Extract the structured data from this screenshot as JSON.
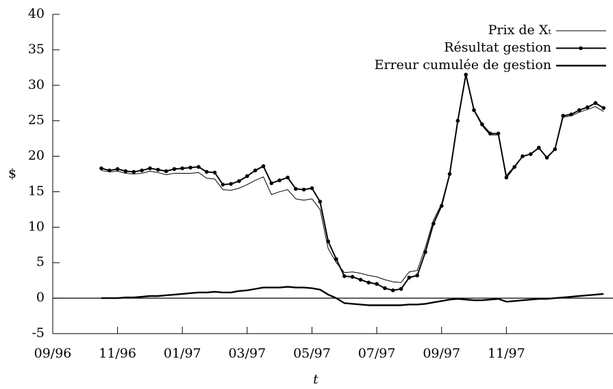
{
  "chart_data": {
    "type": "line",
    "xlabel": "t",
    "ylabel": "$",
    "xlim": [
      0,
      17.29
    ],
    "ylim": [
      -5,
      40
    ],
    "xticks": [
      {
        "value": 0,
        "label": "09/96"
      },
      {
        "value": 2,
        "label": "11/96"
      },
      {
        "value": 4,
        "label": "01/97"
      },
      {
        "value": 6,
        "label": "03/97"
      },
      {
        "value": 8,
        "label": "05/97"
      },
      {
        "value": 10,
        "label": "07/97"
      },
      {
        "value": 12,
        "label": "09/97"
      },
      {
        "value": 14,
        "label": "11/97"
      }
    ],
    "yticks": [
      -5,
      0,
      5,
      10,
      15,
      20,
      25,
      30,
      35,
      40
    ],
    "legend": "upper-right",
    "x": [
      1.5,
      1.75,
      2,
      2.25,
      2.5,
      2.75,
      3,
      3.25,
      3.5,
      3.75,
      4,
      4.25,
      4.5,
      4.75,
      5,
      5.25,
      5.5,
      5.75,
      6,
      6.25,
      6.5,
      6.75,
      7,
      7.25,
      7.5,
      7.75,
      8,
      8.25,
      8.5,
      8.75,
      9,
      9.25,
      9.5,
      9.75,
      10,
      10.25,
      10.5,
      10.75,
      11,
      11.25,
      11.5,
      11.75,
      12,
      12.25,
      12.5,
      12.75,
      13,
      13.25,
      13.5,
      13.75,
      14,
      14.25,
      14.5,
      14.75,
      15,
      15.25,
      15.5,
      15.75,
      16,
      16.25,
      16.5,
      16.75,
      17
    ],
    "series": [
      {
        "name": "Prix de Xₜ",
        "color": "#000000",
        "width": 1,
        "markers": false,
        "values": [
          18.0,
          17.8,
          17.9,
          17.6,
          17.5,
          17.6,
          17.9,
          17.7,
          17.4,
          17.6,
          17.6,
          17.6,
          17.7,
          16.9,
          16.8,
          15.3,
          15.2,
          15.5,
          16.0,
          16.6,
          17.1,
          14.6,
          15.0,
          15.3,
          14.0,
          13.8,
          14.0,
          12.5,
          7.0,
          5.0,
          3.6,
          3.7,
          3.5,
          3.2,
          3.0,
          2.6,
          2.3,
          2.2,
          3.7,
          3.9,
          7.2,
          11.0,
          13.3,
          17.6,
          25.0,
          31.5,
          26.4,
          24.3,
          23.0,
          23.0,
          17.3,
          18.6,
          20.0,
          20.3,
          21.1,
          19.9,
          21.0,
          25.5,
          25.7,
          26.2,
          26.6,
          27.0,
          26.3
        ]
      },
      {
        "name": "Résultat gestion",
        "color": "#000000",
        "width": 2,
        "markers": true,
        "values": [
          18.3,
          18.0,
          18.2,
          17.9,
          17.8,
          18.0,
          18.3,
          18.1,
          17.9,
          18.2,
          18.3,
          18.4,
          18.5,
          17.8,
          17.7,
          16.0,
          16.1,
          16.5,
          17.2,
          18.0,
          18.6,
          16.2,
          16.6,
          17.0,
          15.4,
          15.3,
          15.5,
          13.6,
          8.0,
          5.5,
          3.1,
          3.0,
          2.6,
          2.2,
          2.0,
          1.4,
          1.1,
          1.3,
          2.9,
          3.2,
          6.5,
          10.5,
          13.0,
          17.5,
          25.0,
          31.5,
          26.5,
          24.5,
          23.2,
          23.2,
          17.0,
          18.5,
          20.0,
          20.3,
          21.2,
          19.8,
          21.0,
          25.7,
          25.9,
          26.5,
          26.9,
          27.5,
          26.8
        ]
      },
      {
        "name": "Erreur cumulée de gestion",
        "color": "#000000",
        "width": 2.4,
        "markers": false,
        "values": [
          0.0,
          0.0,
          0.0,
          0.1,
          0.1,
          0.2,
          0.3,
          0.3,
          0.4,
          0.5,
          0.6,
          0.7,
          0.8,
          0.8,
          0.9,
          0.8,
          0.8,
          1.0,
          1.1,
          1.3,
          1.5,
          1.5,
          1.5,
          1.6,
          1.5,
          1.5,
          1.4,
          1.2,
          0.5,
          0.0,
          -0.7,
          -0.8,
          -0.9,
          -1.0,
          -1.0,
          -1.0,
          -1.0,
          -1.0,
          -0.9,
          -0.9,
          -0.8,
          -0.6,
          -0.4,
          -0.2,
          -0.1,
          -0.2,
          -0.3,
          -0.3,
          -0.2,
          -0.1,
          -0.5,
          -0.4,
          -0.3,
          -0.2,
          -0.1,
          -0.1,
          0.0,
          0.1,
          0.2,
          0.3,
          0.4,
          0.5,
          0.6
        ]
      }
    ]
  }
}
